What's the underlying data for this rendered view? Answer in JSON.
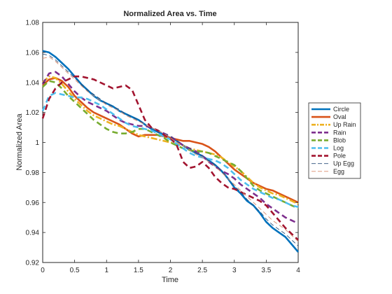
{
  "chart_data": {
    "type": "line",
    "title": "Normalized Area vs. Time",
    "xlabel": "Time",
    "ylabel": "Normalized Area",
    "xlim": [
      0,
      4
    ],
    "ylim": [
      0.92,
      1.08
    ],
    "xticks": [
      "0",
      "0.5",
      "1",
      "1.5",
      "2",
      "2.5",
      "3",
      "3.5",
      "4"
    ],
    "yticks": [
      "0.92",
      "0.94",
      "0.96",
      "0.98",
      "1",
      "1.02",
      "1.04",
      "1.06",
      "1.08"
    ],
    "grid": false,
    "legend_position": "outside-right",
    "series": [
      {
        "name": "Circle",
        "color": "#0072BD",
        "style": "solid-thick",
        "x": [
          0,
          0.1,
          0.2,
          0.3,
          0.4,
          0.5,
          0.6,
          0.7,
          0.8,
          0.9,
          1.0,
          1.1,
          1.2,
          1.3,
          1.4,
          1.5,
          1.6,
          1.7,
          1.8,
          1.9,
          2.0,
          2.1,
          2.2,
          2.3,
          2.4,
          2.5,
          2.6,
          2.7,
          2.8,
          2.9,
          3.0,
          3.1,
          3.2,
          3.3,
          3.4,
          3.5,
          3.6,
          3.7,
          3.8,
          3.9,
          4.0
        ],
        "values": [
          1.061,
          1.06,
          1.057,
          1.053,
          1.049,
          1.044,
          1.039,
          1.035,
          1.031,
          1.028,
          1.026,
          1.024,
          1.021,
          1.019,
          1.017,
          1.015,
          1.012,
          1.009,
          1.007,
          1.005,
          1.003,
          1.001,
          0.998,
          0.995,
          0.993,
          0.991,
          0.988,
          0.985,
          0.981,
          0.976,
          0.97,
          0.966,
          0.961,
          0.958,
          0.953,
          0.947,
          0.943,
          0.94,
          0.937,
          0.932,
          0.927
        ]
      },
      {
        "name": "Oval",
        "color": "#D95319",
        "style": "solid-thick",
        "x": [
          0,
          0.1,
          0.2,
          0.3,
          0.4,
          0.5,
          0.6,
          0.7,
          0.8,
          0.9,
          1.0,
          1.1,
          1.2,
          1.3,
          1.4,
          1.5,
          1.6,
          1.7,
          1.8,
          1.9,
          2.0,
          2.1,
          2.2,
          2.3,
          2.4,
          2.5,
          2.6,
          2.7,
          2.8,
          2.9,
          3.0,
          3.1,
          3.2,
          3.3,
          3.4,
          3.5,
          3.6,
          3.7,
          3.8,
          3.9,
          4.0
        ],
        "values": [
          1.038,
          1.042,
          1.043,
          1.041,
          1.037,
          1.031,
          1.027,
          1.023,
          1.02,
          1.018,
          1.016,
          1.014,
          1.012,
          1.009,
          1.006,
          1.004,
          1.005,
          1.005,
          1.005,
          1.004,
          1.003,
          1.002,
          1.001,
          1.001,
          1.0,
          0.999,
          0.997,
          0.994,
          0.99,
          0.986,
          0.982,
          0.979,
          0.976,
          0.973,
          0.971,
          0.969,
          0.968,
          0.966,
          0.964,
          0.962,
          0.96
        ]
      },
      {
        "name": "Up Rain",
        "color": "#EDB120",
        "style": "dashdot-thick",
        "x": [
          0,
          0.1,
          0.2,
          0.3,
          0.4,
          0.5,
          0.6,
          0.7,
          0.8,
          0.9,
          1.0,
          1.1,
          1.2,
          1.3,
          1.4,
          1.5,
          1.6,
          1.7,
          1.8,
          1.9,
          2.0,
          2.1,
          2.2,
          2.3,
          2.4,
          2.5,
          2.6,
          2.7,
          2.8,
          2.9,
          3.0,
          3.1,
          3.2,
          3.3,
          3.4,
          3.5,
          3.6,
          3.7,
          3.8,
          3.9,
          4.0
        ],
        "values": [
          1.04,
          1.044,
          1.043,
          1.039,
          1.034,
          1.029,
          1.025,
          1.021,
          1.018,
          1.016,
          1.014,
          1.012,
          1.011,
          1.009,
          1.007,
          1.005,
          1.004,
          1.003,
          1.002,
          1.001,
          1.0,
          0.999,
          0.998,
          0.996,
          0.995,
          0.994,
          0.993,
          0.992,
          0.99,
          0.987,
          0.984,
          0.981,
          0.977,
          0.973,
          0.97,
          0.968,
          0.966,
          0.965,
          0.963,
          0.961,
          0.959
        ]
      },
      {
        "name": "Rain",
        "color": "#7E2F8E",
        "style": "dashed-thick",
        "x": [
          0,
          0.1,
          0.2,
          0.3,
          0.4,
          0.5,
          0.6,
          0.7,
          0.8,
          0.9,
          1.0,
          1.1,
          1.2,
          1.3,
          1.4,
          1.5,
          1.6,
          1.7,
          1.8,
          1.9,
          2.0,
          2.1,
          2.2,
          2.3,
          2.4,
          2.5,
          2.6,
          2.7,
          2.8,
          2.9,
          3.0,
          3.1,
          3.2,
          3.3,
          3.4,
          3.5,
          3.6,
          3.7,
          3.8,
          3.9,
          4.0
        ],
        "values": [
          1.039,
          1.046,
          1.047,
          1.044,
          1.039,
          1.034,
          1.03,
          1.027,
          1.025,
          1.023,
          1.021,
          1.018,
          1.015,
          1.013,
          1.012,
          1.011,
          1.011,
          1.01,
          1.008,
          1.006,
          1.004,
          1.001,
          0.998,
          0.996,
          0.994,
          0.991,
          0.987,
          0.984,
          0.981,
          0.979,
          0.976,
          0.972,
          0.969,
          0.966,
          0.963,
          0.959,
          0.956,
          0.953,
          0.95,
          0.948,
          0.946
        ]
      },
      {
        "name": "Blob",
        "color": "#77AC30",
        "style": "dashed-thick",
        "x": [
          0,
          0.1,
          0.2,
          0.3,
          0.4,
          0.5,
          0.6,
          0.7,
          0.8,
          0.9,
          1.0,
          1.1,
          1.2,
          1.3,
          1.4,
          1.5,
          1.6,
          1.7,
          1.8,
          1.9,
          2.0,
          2.1,
          2.2,
          2.3,
          2.4,
          2.5,
          2.6,
          2.7,
          2.8,
          2.9,
          3.0,
          3.1,
          3.2,
          3.3,
          3.4,
          3.5,
          3.6,
          3.7,
          3.8,
          3.9,
          4.0
        ],
        "values": [
          1.037,
          1.041,
          1.04,
          1.036,
          1.031,
          1.027,
          1.023,
          1.019,
          1.015,
          1.012,
          1.009,
          1.007,
          1.006,
          1.006,
          1.007,
          1.009,
          1.009,
          1.007,
          1.005,
          1.003,
          1.0,
          0.998,
          0.996,
          0.995,
          0.994,
          0.994,
          0.993,
          0.991,
          0.989,
          0.987,
          0.985,
          0.981,
          0.976,
          0.971,
          0.968,
          0.966,
          0.964,
          0.962,
          0.96,
          0.958,
          0.956
        ]
      },
      {
        "name": "Log",
        "color": "#4DBEEE",
        "style": "dashed-thick",
        "x": [
          0,
          0.1,
          0.2,
          0.3,
          0.4,
          0.5,
          0.6,
          0.7,
          0.8,
          0.9,
          1.0,
          1.1,
          1.2,
          1.3,
          1.4,
          1.5,
          1.6,
          1.7,
          1.8,
          1.9,
          2.0,
          2.1,
          2.2,
          2.3,
          2.4,
          2.5,
          2.6,
          2.7,
          2.8,
          2.9,
          3.0,
          3.1,
          3.2,
          3.3,
          3.4,
          3.5,
          3.6,
          3.7,
          3.8,
          3.9,
          4.0
        ],
        "values": [
          1.021,
          1.031,
          1.033,
          1.032,
          1.031,
          1.03,
          1.03,
          1.029,
          1.027,
          1.025,
          1.022,
          1.019,
          1.016,
          1.013,
          1.011,
          1.01,
          1.009,
          1.008,
          1.006,
          1.004,
          1.002,
          0.999,
          0.996,
          0.993,
          0.991,
          0.99,
          0.989,
          0.988,
          0.986,
          0.983,
          0.979,
          0.975,
          0.972,
          0.969,
          0.967,
          0.965,
          0.963,
          0.962,
          0.96,
          0.958,
          0.957
        ]
      },
      {
        "name": "Pole",
        "color": "#A2142F",
        "style": "dashed-thick",
        "x": [
          0,
          0.1,
          0.2,
          0.3,
          0.4,
          0.5,
          0.6,
          0.7,
          0.8,
          0.9,
          1.0,
          1.1,
          1.2,
          1.3,
          1.4,
          1.5,
          1.6,
          1.7,
          1.8,
          1.9,
          2.0,
          2.1,
          2.2,
          2.3,
          2.4,
          2.5,
          2.6,
          2.7,
          2.8,
          2.9,
          3.0,
          3.1,
          3.2,
          3.3,
          3.4,
          3.5,
          3.6,
          3.7,
          3.8,
          3.9,
          4.0
        ],
        "values": [
          1.016,
          1.029,
          1.036,
          1.04,
          1.042,
          1.044,
          1.044,
          1.043,
          1.042,
          1.04,
          1.038,
          1.036,
          1.037,
          1.038,
          1.035,
          1.025,
          1.015,
          1.01,
          1.008,
          1.005,
          1.003,
          0.998,
          0.987,
          0.983,
          0.984,
          0.987,
          0.983,
          0.977,
          0.973,
          0.97,
          0.969,
          0.967,
          0.965,
          0.963,
          0.961,
          0.958,
          0.953,
          0.948,
          0.943,
          0.939,
          0.935
        ]
      },
      {
        "name": "Up Egg",
        "color": "#2a4f7a",
        "style": "dashed-thin",
        "x": [
          0,
          0.1,
          0.2,
          0.3,
          0.4,
          0.5,
          0.6,
          0.7,
          0.8,
          0.9,
          1.0,
          1.1,
          1.2,
          1.3,
          1.4,
          1.5,
          1.6,
          1.7,
          1.8,
          1.9,
          2.0,
          2.1,
          2.2,
          2.3,
          2.4,
          2.5,
          2.6,
          2.7,
          2.8,
          2.9,
          3.0,
          3.1,
          3.2,
          3.3,
          3.4,
          3.5,
          3.6,
          3.7,
          3.8,
          3.9,
          4.0
        ],
        "values": [
          1.059,
          1.058,
          1.055,
          1.051,
          1.047,
          1.043,
          1.039,
          1.035,
          1.032,
          1.029,
          1.026,
          1.024,
          1.022,
          1.019,
          1.017,
          1.015,
          1.012,
          1.01,
          1.008,
          1.006,
          1.004,
          1.001,
          0.998,
          0.996,
          0.993,
          0.991,
          0.988,
          0.985,
          0.981,
          0.976,
          0.971,
          0.967,
          0.962,
          0.958,
          0.954,
          0.949,
          0.945,
          0.942,
          0.939,
          0.935,
          0.931
        ]
      },
      {
        "name": "Egg",
        "color": "#d98a6a",
        "style": "dashed-thin",
        "x": [
          0,
          0.1,
          0.2,
          0.3,
          0.4,
          0.5,
          0.6,
          0.7,
          0.8,
          0.9,
          1.0,
          1.1,
          1.2,
          1.3,
          1.4,
          1.5,
          1.6,
          1.7,
          1.8,
          1.9,
          2.0,
          2.1,
          2.2,
          2.3,
          2.4,
          2.5,
          2.6,
          2.7,
          2.8,
          2.9,
          3.0,
          3.1,
          3.2,
          3.3,
          3.4,
          3.5,
          3.6,
          3.7,
          3.8,
          3.9,
          4.0
        ],
        "values": [
          1.056,
          1.057,
          1.054,
          1.05,
          1.046,
          1.042,
          1.038,
          1.034,
          1.031,
          1.028,
          1.025,
          1.023,
          1.021,
          1.018,
          1.016,
          1.014,
          1.012,
          1.01,
          1.008,
          1.006,
          1.003,
          1.0,
          0.998,
          0.995,
          0.992,
          0.99,
          0.987,
          0.984,
          0.98,
          0.976,
          0.972,
          0.968,
          0.964,
          0.96,
          0.956,
          0.952,
          0.948,
          0.945,
          0.942,
          0.938,
          0.934
        ]
      }
    ]
  }
}
